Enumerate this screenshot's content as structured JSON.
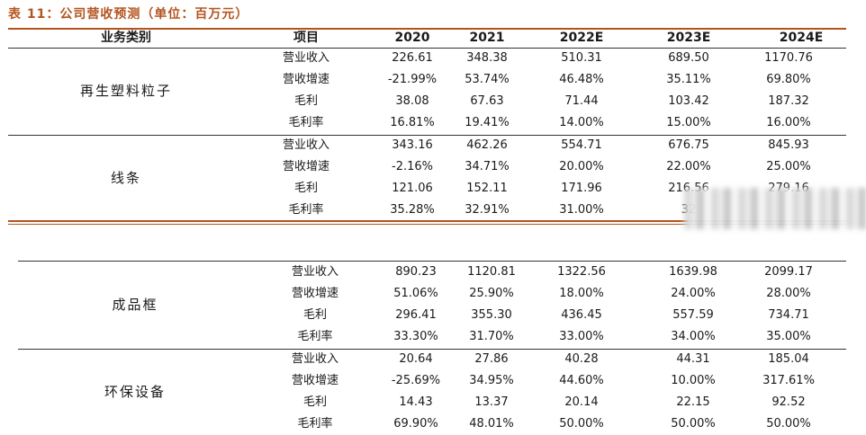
{
  "title": "表 11：公司营收预测（单位：百万元）",
  "headers": [
    "业务类别",
    "项目",
    "2020",
    "2021",
    "2022E",
    "2023E",
    "2024E"
  ],
  "groups": [
    {
      "category": "再生塑料粒子",
      "rows": [
        {
          "item": "营业收入",
          "values": [
            "226.61",
            "348.38",
            "510.31",
            "689.50",
            "1170.76"
          ]
        },
        {
          "item": "营收增速",
          "values": [
            "-21.99%",
            "53.74%",
            "46.48%",
            "35.11%",
            "69.80%"
          ]
        },
        {
          "item": "毛利",
          "values": [
            "38.08",
            "67.63",
            "71.44",
            "103.42",
            "187.32"
          ]
        },
        {
          "item": "毛利率",
          "values": [
            "16.81%",
            "19.41%",
            "14.00%",
            "15.00%",
            "16.00%"
          ]
        }
      ]
    },
    {
      "category": "线条",
      "rows": [
        {
          "item": "营业收入",
          "values": [
            "343.16",
            "462.26",
            "554.71",
            "676.75",
            "845.93"
          ]
        },
        {
          "item": "营收增速",
          "values": [
            "-2.16%",
            "34.71%",
            "20.00%",
            "22.00%",
            "25.00%"
          ]
        },
        {
          "item": "毛利",
          "values": [
            "121.06",
            "152.11",
            "171.96",
            "216.56",
            "279.16"
          ]
        },
        {
          "item": "毛利率",
          "values": [
            "35.28%",
            "32.91%",
            "31.00%",
            "32",
            ""
          ]
        }
      ]
    },
    {
      "category": "成品框",
      "rows": [
        {
          "item": "营业收入",
          "values": [
            "890.23",
            "1120.81",
            "1322.56",
            "1639.98",
            "2099.17"
          ]
        },
        {
          "item": "营收增速",
          "values": [
            "51.06%",
            "25.90%",
            "18.00%",
            "24.00%",
            "28.00%"
          ]
        },
        {
          "item": "毛利",
          "values": [
            "296.41",
            "355.30",
            "436.45",
            "557.59",
            "734.71"
          ]
        },
        {
          "item": "毛利率",
          "values": [
            "33.30%",
            "31.70%",
            "33.00%",
            "34.00%",
            "35.00%"
          ]
        }
      ]
    },
    {
      "category": "环保设备",
      "rows": [
        {
          "item": "营业收入",
          "values": [
            "20.64",
            "27.86",
            "40.28",
            "44.31",
            "185.04"
          ]
        },
        {
          "item": "营收增速",
          "values": [
            "-25.69%",
            "34.95%",
            "44.60%",
            "10.00%",
            "317.61%"
          ]
        },
        {
          "item": "毛利",
          "values": [
            "14.43",
            "13.37",
            "20.14",
            "22.15",
            "92.52"
          ]
        },
        {
          "item": "毛利率",
          "values": [
            "69.90%",
            "48.01%",
            "50.00%",
            "50.00%",
            "50.00%"
          ]
        }
      ]
    }
  ]
}
